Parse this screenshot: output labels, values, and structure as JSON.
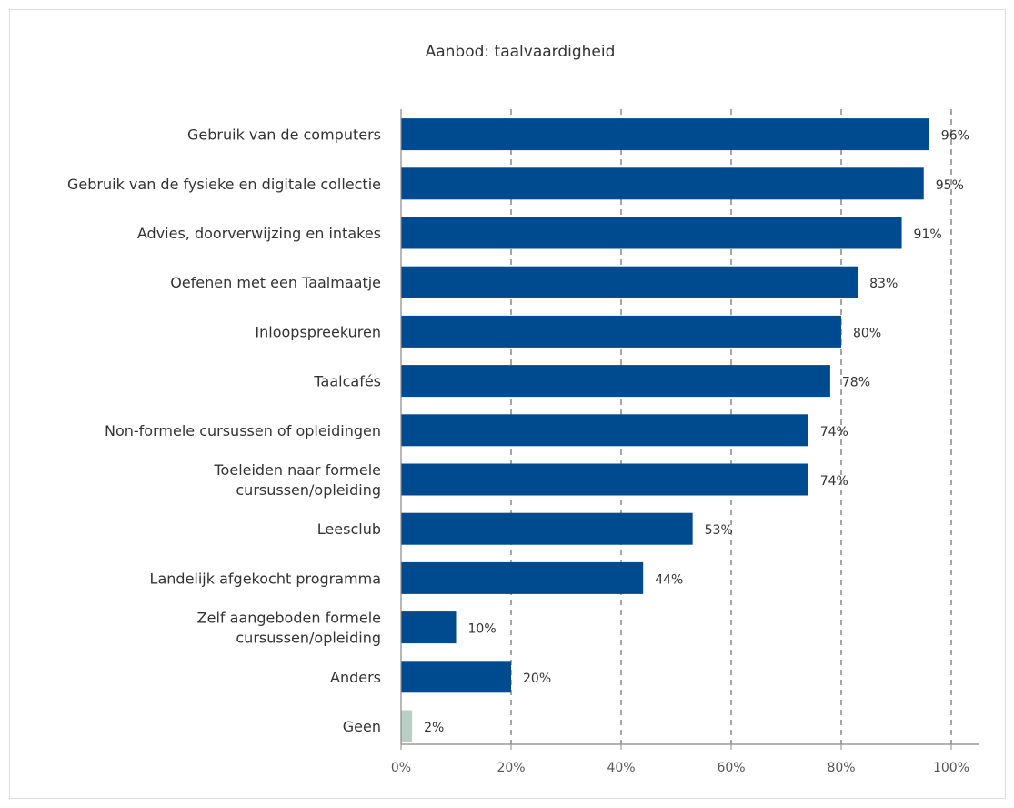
{
  "chart_data": {
    "type": "bar",
    "orientation": "horizontal",
    "title": "Aanbod: taalvaardigheid",
    "categories": [
      [
        "Gebruik van de computers"
      ],
      [
        "Gebruik van de fysieke en digitale collectie"
      ],
      [
        "Advies, doorverwijzing en intakes"
      ],
      [
        "Oefenen met een Taalmaatje"
      ],
      [
        "Inloopspreekuren"
      ],
      [
        "Taalcafés"
      ],
      [
        "Non-formele cursussen of opleidingen"
      ],
      [
        "Toeleiden naar formele",
        "cursussen/opleiding"
      ],
      [
        "Leesclub"
      ],
      [
        "Landelijk afgekocht programma"
      ],
      [
        "Zelf aangeboden formele",
        "cursussen/opleiding"
      ],
      [
        "Anders"
      ],
      [
        "Geen"
      ]
    ],
    "values": [
      96,
      95,
      91,
      83,
      80,
      78,
      74,
      74,
      53,
      44,
      10,
      20,
      2
    ],
    "value_labels": [
      "96%",
      "95%",
      "91%",
      "83%",
      "80%",
      "78%",
      "74%",
      "74%",
      "53%",
      "44%",
      "10%",
      "20%",
      "2%"
    ],
    "bar_colors": [
      "#004a8f",
      "#004a8f",
      "#004a8f",
      "#004a8f",
      "#004a8f",
      "#004a8f",
      "#004a8f",
      "#004a8f",
      "#004a8f",
      "#004a8f",
      "#004a8f",
      "#004a8f",
      "#b9cfc6"
    ],
    "xlim": [
      0,
      100
    ],
    "x_ticks": [
      0,
      20,
      40,
      60,
      80,
      100
    ],
    "x_tick_labels": [
      "0%",
      "20%",
      "40%",
      "60%",
      "80%",
      "100%"
    ],
    "grid": "vertical dashed",
    "legend": "none"
  }
}
